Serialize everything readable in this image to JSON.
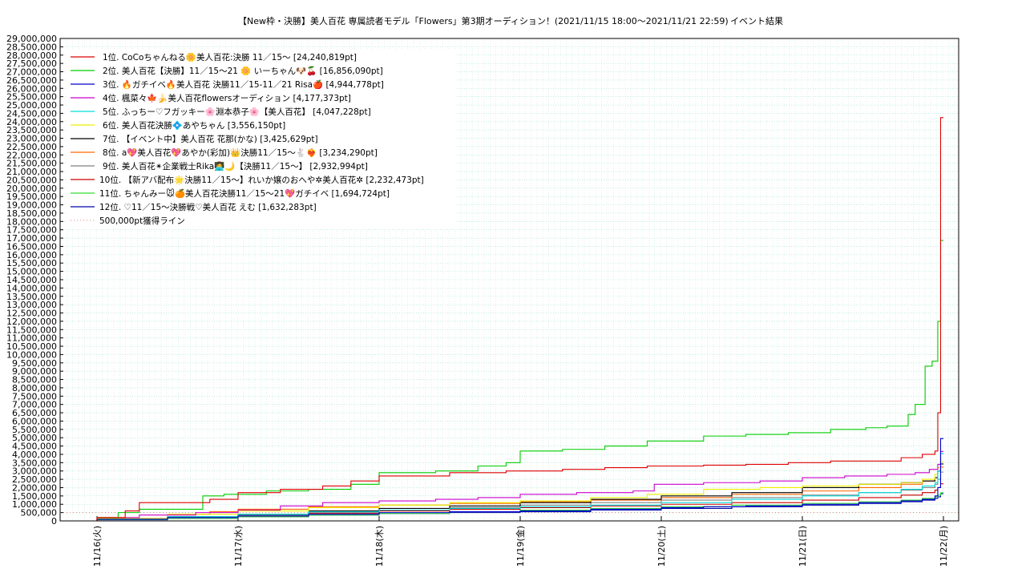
{
  "chart_data": {
    "type": "line",
    "title": "【New枠・決勝】美人百花 専属読者モデル「Flowers」第3期オーディション！(2021/11/15 18:00～2021/11/21 22:59)",
    "subtitle": "イベント結果",
    "xlabel": "",
    "ylabel": "",
    "ylim": [
      0,
      29000000
    ],
    "xlim": [
      0,
      6
    ],
    "y_tick_step": 500000,
    "grid": true,
    "legend_position": "top-left",
    "x_ticks": [
      "11/16(火)",
      "11/17(水)",
      "11/18(木)",
      "11/19(金)",
      "11/20(土)",
      "11/21(日)",
      "11/22(月)"
    ],
    "y_ticks": [
      "0",
      "500,000",
      "1,000,000",
      "1,500,000",
      "2,000,000",
      "2,500,000",
      "3,000,000",
      "3,500,000",
      "4,000,000",
      "4,500,000",
      "5,000,000",
      "5,500,000",
      "6,000,000",
      "6,500,000",
      "7,000,000",
      "7,500,000",
      "8,000,000",
      "8,500,000",
      "9,000,000",
      "9,500,000",
      "10,000,000",
      "10,500,000",
      "11,000,000",
      "11,500,000",
      "12,000,000",
      "12,500,000",
      "13,000,000",
      "13,500,000",
      "14,000,000",
      "14,500,000",
      "15,000,000",
      "15,500,000",
      "16,000,000",
      "16,500,000",
      "17,000,000",
      "17,500,000",
      "18,000,000",
      "18,500,000",
      "19,000,000",
      "19,500,000",
      "20,000,000",
      "20,500,000",
      "21,000,000",
      "21,500,000",
      "22,000,000",
      "22,500,000",
      "23,000,000",
      "23,500,000",
      "24,000,000",
      "24,500,000",
      "25,000,000",
      "25,500,000",
      "26,000,000",
      "26,500,000",
      "27,000,000",
      "27,500,000",
      "28,000,000",
      "28,500,000",
      "29,000,000"
    ],
    "series": [
      {
        "name": "1位. CoCoちゃんねる🌼美人百花:決勝 11／15〜 [24,240,819pt]",
        "color": "#dd0000",
        "x": [
          -0.25,
          0,
          0.2,
          0.3,
          0.8,
          1.0,
          1.3,
          1.6,
          1.8,
          2.0,
          2.5,
          2.9,
          3.3,
          3.6,
          3.9,
          4.3,
          4.6,
          4.9,
          5.2,
          5.5,
          5.7,
          5.85,
          5.94,
          5.96,
          5.98,
          6.0
        ],
        "y": [
          0,
          200000,
          600000,
          1100000,
          1300000,
          1700000,
          1900000,
          2100000,
          2400000,
          2700000,
          2900000,
          3000000,
          3100000,
          3200000,
          3300000,
          3350000,
          3400000,
          3500000,
          3600000,
          3600000,
          3800000,
          4000000,
          4200000,
          6500000,
          24240819,
          24240819
        ]
      },
      {
        "name": "2位. 美人百花【決勝】11／15〜21 🌼 いーちゃん🐶🍒 [16,856,090pt]",
        "color": "#00cc00",
        "x": [
          -0.25,
          0,
          0.15,
          0.3,
          0.75,
          0.9,
          1.2,
          1.5,
          1.8,
          2.0,
          2.4,
          2.7,
          2.9,
          3.0,
          3.3,
          3.6,
          3.9,
          4.3,
          4.6,
          4.9,
          5.2,
          5.45,
          5.6,
          5.75,
          5.8,
          5.87,
          5.92,
          5.96,
          5.98,
          6.0
        ],
        "y": [
          0,
          200000,
          500000,
          700000,
          1500000,
          1600000,
          1800000,
          1900000,
          2200000,
          2900000,
          3000000,
          3300000,
          3500000,
          4200000,
          4300000,
          4500000,
          4800000,
          5100000,
          5200000,
          5300000,
          5500000,
          5600000,
          5700000,
          6400000,
          7000000,
          9300000,
          9600000,
          12000000,
          16856090,
          16856090
        ]
      },
      {
        "name": "3位. 🔥ガチイベ🔥美人百花 決勝11／15-11／21 Risa🍎 [4,944,778pt]",
        "color": "#0000cc",
        "x": [
          -0.25,
          0,
          0.5,
          1.0,
          1.5,
          2.0,
          2.5,
          3.0,
          3.5,
          4.0,
          4.3,
          4.6,
          5.0,
          5.4,
          5.7,
          5.85,
          5.94,
          5.96,
          5.98,
          6.0
        ],
        "y": [
          0,
          100000,
          200000,
          300000,
          400000,
          500000,
          550000,
          600000,
          700000,
          800000,
          850000,
          900000,
          1000000,
          1100000,
          1200000,
          1300000,
          1500000,
          2000000,
          4944778,
          4944778
        ]
      },
      {
        "name": "4位. 楓菜々🍁🍌美人百花flowersオーディション [4,177,373pt]",
        "color": "#cc00cc",
        "x": [
          -0.25,
          0,
          0.3,
          0.7,
          1.0,
          1.3,
          1.6,
          2.0,
          2.4,
          2.7,
          3.0,
          3.4,
          3.8,
          3.95,
          4.3,
          4.7,
          5.0,
          5.3,
          5.6,
          5.8,
          5.9,
          5.96,
          5.98,
          6.0
        ],
        "y": [
          0,
          200000,
          350000,
          500000,
          650000,
          900000,
          1100000,
          1200000,
          1300000,
          1400000,
          1600000,
          1700000,
          1800000,
          2200000,
          2300000,
          2400000,
          2600000,
          2700000,
          2800000,
          2900000,
          3100000,
          3400000,
          4177373,
          4177373
        ]
      },
      {
        "name": "5位. ふっちー♡フガッキー🌸淵本恭子🌸【美人百花】 [4,047,228pt]",
        "color": "#00dddd",
        "x": [
          -0.25,
          0,
          0.5,
          1.0,
          1.5,
          2.0,
          2.5,
          3.0,
          3.5,
          4.0,
          4.5,
          5.0,
          5.4,
          5.7,
          5.85,
          5.94,
          5.96,
          5.98,
          6.0
        ],
        "y": [
          0,
          100000,
          250000,
          400000,
          550000,
          650000,
          750000,
          850000,
          950000,
          1100000,
          1300000,
          1500000,
          1700000,
          1900000,
          2100000,
          2300000,
          3000000,
          4047228,
          4047228
        ]
      },
      {
        "name": "6位. 美人百花決勝💠あやちゃん [3,556,150pt]",
        "color": "#eeee00",
        "x": [
          -0.25,
          0,
          0.5,
          1.0,
          1.5,
          2.0,
          2.5,
          3.0,
          3.5,
          3.9,
          4.3,
          4.7,
          5.0,
          5.4,
          5.7,
          5.85,
          5.94,
          5.96,
          5.98,
          6.0
        ],
        "y": [
          0,
          150000,
          400000,
          600000,
          800000,
          950000,
          1100000,
          1200000,
          1400000,
          1600000,
          1900000,
          2000000,
          2100000,
          2200000,
          2300000,
          2500000,
          2800000,
          3200000,
          3556150,
          3556150
        ]
      },
      {
        "name": "7位. 【イベント中】美人百花 花那(かな) [3,425,629pt]",
        "color": "#000000",
        "x": [
          -0.25,
          0,
          0.5,
          1.0,
          1.5,
          2.0,
          2.5,
          3.0,
          3.5,
          4.0,
          4.5,
          5.0,
          5.4,
          5.7,
          5.85,
          5.94,
          5.96,
          5.98,
          6.0
        ],
        "y": [
          0,
          100000,
          250000,
          400000,
          600000,
          750000,
          900000,
          1100000,
          1300000,
          1500000,
          1700000,
          2000000,
          2200000,
          2300000,
          2400000,
          2600000,
          3000000,
          3425629,
          3425629
        ]
      },
      {
        "name": "8位. a💖美人百花💖あやか(彩加)👑決勝11／15〜🐇❤️‍🔥 [3,234,290pt]",
        "color": "#ff6600",
        "x": [
          -0.25,
          0,
          0.5,
          0.8,
          1.0,
          1.5,
          2.0,
          2.5,
          3.0,
          3.5,
          4.0,
          4.5,
          5.0,
          5.4,
          5.7,
          5.85,
          5.94,
          5.96,
          5.98,
          6.0
        ],
        "y": [
          0,
          150000,
          400000,
          550000,
          700000,
          850000,
          950000,
          1050000,
          1150000,
          1250000,
          1400000,
          1600000,
          1800000,
          2000000,
          2200000,
          2400000,
          2600000,
          3000000,
          3234290,
          3234290
        ]
      },
      {
        "name": "9位. 美人百花✴︎企業戦士Rika👩‍💻🌙【決勝11／15〜】 [2,932,994pt]",
        "color": "#808080",
        "x": [
          -0.25,
          0,
          0.5,
          1.0,
          1.5,
          2.0,
          2.5,
          3.0,
          3.5,
          4.0,
          4.5,
          5.0,
          5.4,
          5.7,
          5.85,
          5.94,
          5.96,
          5.98,
          6.0
        ],
        "y": [
          0,
          100000,
          200000,
          350000,
          500000,
          650000,
          800000,
          950000,
          1100000,
          1250000,
          1400000,
          1550000,
          1700000,
          1850000,
          2000000,
          2200000,
          2500000,
          2932994,
          2932994
        ]
      },
      {
        "name": "10位. 【新アバ配布🌟決勝11／15〜】れいか嬢のおへや✲美人百花✲ [2,232,473pt]",
        "color": "#cc0000",
        "x": [
          -0.25,
          0,
          0.5,
          1.0,
          1.5,
          2.0,
          2.5,
          3.0,
          3.5,
          4.0,
          4.5,
          5.0,
          5.4,
          5.7,
          5.85,
          5.94,
          5.96,
          5.98,
          6.0
        ],
        "y": [
          0,
          100000,
          200000,
          300000,
          450000,
          600000,
          700000,
          800000,
          900000,
          1000000,
          1100000,
          1250000,
          1400000,
          1550000,
          1700000,
          1850000,
          2000000,
          2232473,
          2232473
        ]
      },
      {
        "name": "11位. ちゃんみー🐭🍊美人百花決勝11／15〜21💖ガチイベ [1,694,724pt]",
        "color": "#33dd33",
        "x": [
          -0.25,
          0,
          0.5,
          1.0,
          1.5,
          2.0,
          2.5,
          3.0,
          3.5,
          4.0,
          4.5,
          5.0,
          5.4,
          5.7,
          5.85,
          5.94,
          5.96,
          5.98,
          6.0
        ],
        "y": [
          0,
          80000,
          150000,
          250000,
          350000,
          450000,
          550000,
          650000,
          750000,
          850000,
          950000,
          1050000,
          1150000,
          1250000,
          1350000,
          1450000,
          1550000,
          1694724,
          1694724
        ]
      },
      {
        "name": "12位. ♡11／15〜決勝戦♡美人百花 えむ [1,632,283pt]",
        "color": "#0000aa",
        "x": [
          -0.25,
          0,
          0.5,
          1.0,
          1.5,
          2.0,
          2.5,
          3.0,
          3.5,
          4.0,
          4.5,
          5.0,
          5.4,
          5.7,
          5.85,
          5.94,
          5.96,
          5.98,
          6.0
        ],
        "y": [
          0,
          70000,
          150000,
          250000,
          350000,
          450000,
          500000,
          550000,
          650000,
          750000,
          850000,
          950000,
          1050000,
          1150000,
          1250000,
          1350000,
          1450000,
          1632283,
          1632283
        ]
      }
    ],
    "reference_line": {
      "name": "500,000pt獲得ライン",
      "value": 500000,
      "color": "#e08080"
    }
  }
}
